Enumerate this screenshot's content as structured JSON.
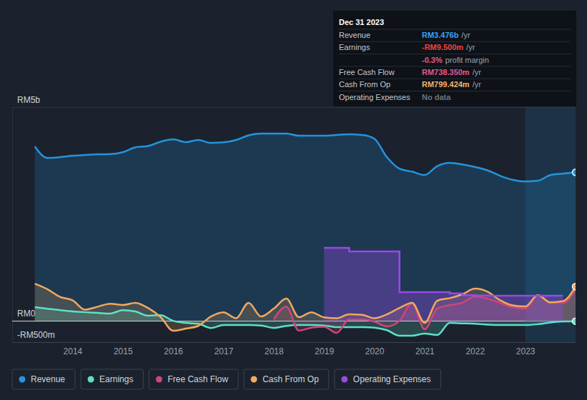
{
  "chart_data": {
    "type": "area",
    "x": [
      2013.25,
      2013.5,
      2013.75,
      2014,
      2014.25,
      2014.5,
      2014.75,
      2015,
      2015.25,
      2015.5,
      2015.75,
      2016,
      2016.25,
      2016.5,
      2016.75,
      2017,
      2017.25,
      2017.5,
      2017.75,
      2018,
      2018.25,
      2018.5,
      2018.75,
      2019,
      2019.25,
      2019.5,
      2019.75,
      2020,
      2020.25,
      2020.5,
      2020.75,
      2021,
      2021.25,
      2021.5,
      2021.75,
      2022,
      2022.25,
      2022.5,
      2022.75,
      2023,
      2023.25,
      2023.5,
      2023.75,
      2024
    ],
    "xlim": [
      2012.8,
      2024
    ],
    "xticks": [
      2014,
      2015,
      2016,
      2017,
      2018,
      2019,
      2020,
      2021,
      2022,
      2023
    ],
    "ylim": [
      -500,
      5000
    ],
    "yticks": [
      {
        "value": -500,
        "label": "-RM500m"
      },
      {
        "value": 0,
        "label": "RM0"
      },
      {
        "value": 5000,
        "label": "RM5b"
      }
    ],
    "grid": true,
    "legend": "bottom-left",
    "shaded_range": [
      2023,
      2024
    ],
    "series": [
      {
        "name": "Revenue",
        "color": "#2394df",
        "line_style": "solid",
        "marker": "last",
        "values": [
          4080,
          3812,
          3830,
          3862,
          3880,
          3895,
          3900,
          3946,
          4060,
          4090,
          4190,
          4247,
          4180,
          4230,
          4163,
          4175,
          4230,
          4340,
          4381,
          4381,
          4381,
          4330,
          4330,
          4330,
          4350,
          4364,
          4350,
          4260,
          3830,
          3560,
          3490,
          3411,
          3620,
          3695,
          3660,
          3600,
          3520,
          3394,
          3300,
          3260,
          3277,
          3411,
          3444,
          3476
        ]
      },
      {
        "name": "Earnings",
        "color": "#5ee0c9",
        "line_style": "solid",
        "marker": "last",
        "values": [
          318,
          280,
          250,
          220,
          200,
          185,
          170,
          250,
          220,
          120,
          130,
          0,
          -50,
          -70,
          -170,
          -100,
          -100,
          -100,
          -110,
          -167,
          -120,
          -100,
          -100,
          -110,
          -150,
          -150,
          -150,
          -160,
          -220,
          -350,
          -350,
          -300,
          -334,
          -50,
          -60,
          -70,
          -90,
          -100,
          -100,
          -100,
          -80,
          -40,
          -17,
          -9.5
        ]
      },
      {
        "name": "Free Cash Flow",
        "color": "#d0457a",
        "line_style": "solid",
        "marker": "none",
        "values": [
          null,
          null,
          null,
          null,
          null,
          null,
          null,
          null,
          null,
          null,
          null,
          null,
          null,
          null,
          null,
          null,
          null,
          null,
          null,
          33,
          330,
          -230,
          -160,
          -140,
          -284,
          30,
          30,
          -20,
          -134,
          0,
          418,
          -200,
          284,
          368,
          420,
          568,
          518,
          418,
          318,
          284,
          602,
          418,
          418,
          738.35
        ]
      },
      {
        "name": "Cash From Op",
        "color": "#f2a85e",
        "line_style": "solid",
        "marker": "last",
        "values": [
          870,
          740,
          560,
          480,
          260,
          330,
          400,
          370,
          420,
          300,
          90,
          -234,
          -184,
          -120,
          100,
          200,
          60,
          420,
          100,
          284,
          518,
          84,
          200,
          80,
          60,
          150,
          140,
          60,
          150,
          300,
          420,
          -50,
          470,
          530,
          620,
          752,
          680,
          480,
          360,
          334,
          600,
          430,
          460,
          799.424
        ]
      },
      {
        "name": "Operating Expenses",
        "color": "#9b48e8",
        "line_style": "step",
        "marker": "none",
        "values": [
          null,
          null,
          null,
          null,
          null,
          null,
          null,
          null,
          null,
          null,
          null,
          null,
          null,
          null,
          null,
          null,
          null,
          null,
          null,
          null,
          null,
          null,
          null,
          1705,
          1705,
          1622,
          1622,
          1622,
          1622,
          669,
          669,
          669,
          669,
          640,
          600,
          590,
          585,
          585,
          585,
          585,
          585,
          585,
          585,
          null
        ]
      }
    ],
    "tooltip": {
      "title": "Dec 31 2023",
      "rows": [
        {
          "label": "Revenue",
          "value": "RM3.476b",
          "suffix": "/yr",
          "color": "#3ba3f0"
        },
        {
          "label": "Earnings",
          "value": "-RM9.500m",
          "suffix": "/yr",
          "color": "#ef4444"
        },
        {
          "value": "-0.3%",
          "suffix": "profit margin",
          "color": "#e05a8d"
        },
        {
          "label": "Free Cash Flow",
          "value": "RM738.350m",
          "suffix": "/yr",
          "color": "#e05a8d"
        },
        {
          "label": "Cash From Op",
          "value": "RM799.424m",
          "suffix": "/yr",
          "color": "#f5b26b"
        },
        {
          "label": "Operating Expenses",
          "value": "No data",
          "color": "#6b7280"
        }
      ]
    }
  }
}
